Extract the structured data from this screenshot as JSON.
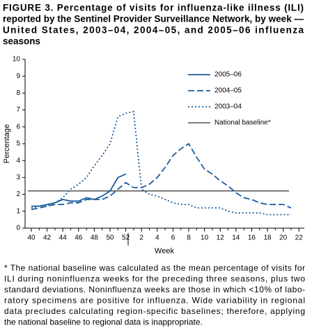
{
  "chart_data": {
    "type": "line",
    "title": [
      "FIGURE 3. Percentage of visits for influenza-like illness (ILI)",
      "reported by the Sentinel Provider Surveillance Network, by week —",
      "United States, 2003–04, 2004–05, and 2005–06 influenza",
      "seasons"
    ],
    "x_label": "Week",
    "y_label": "Percentage",
    "categories": [
      "40",
      null,
      "42",
      null,
      "44",
      null,
      "46",
      null,
      "48",
      null,
      "50",
      null,
      "52",
      null,
      "2",
      null,
      "4",
      null,
      "6",
      null,
      "8",
      null,
      "10",
      null,
      "12",
      null,
      "14",
      null,
      "16",
      null,
      "18",
      null,
      "20",
      null,
      "22"
    ],
    "series": [
      {
        "name": "2005–06",
        "color": "#1a5a9e",
        "dash": "solid",
        "values": [
          1.3,
          1.3,
          1.4,
          1.5,
          1.7,
          1.6,
          1.6,
          1.8,
          1.7,
          1.9,
          2.2,
          3.0,
          3.2,
          null,
          null,
          null,
          null,
          null,
          null,
          null,
          null,
          null,
          null,
          null,
          null,
          null,
          null,
          null,
          null,
          null,
          null,
          null,
          null,
          null,
          null
        ]
      },
      {
        "name": "2004–05",
        "color": "#1a5a9e",
        "dash": "dashed",
        "values": [
          1.1,
          1.2,
          1.3,
          1.4,
          1.4,
          1.5,
          1.5,
          1.7,
          1.7,
          1.7,
          1.9,
          2.3,
          2.7,
          2.4,
          2.4,
          2.6,
          3.0,
          3.6,
          4.3,
          4.7,
          5.0,
          4.2,
          3.5,
          3.2,
          2.8,
          2.5,
          2.1,
          1.8,
          1.7,
          1.5,
          1.4,
          1.4,
          1.4,
          1.2,
          null
        ]
      },
      {
        "name": "2003–04",
        "color": "#1a5a9e",
        "dash": "dotted",
        "values": [
          1.2,
          1.3,
          1.3,
          1.5,
          1.8,
          2.3,
          2.6,
          3.0,
          3.7,
          4.3,
          5.0,
          6.6,
          6.8,
          6.9,
          2.3,
          2.0,
          1.9,
          1.7,
          1.5,
          1.4,
          1.4,
          1.2,
          1.2,
          1.2,
          1.2,
          1.0,
          0.9,
          0.9,
          0.9,
          0.9,
          0.8,
          0.8,
          0.8,
          0.8,
          null
        ]
      }
    ],
    "baseline": {
      "name": "National baseline*",
      "value": 2.2,
      "color": "#000000"
    },
    "ylim": [
      0,
      10
    ],
    "yticks": [
      0,
      1,
      2,
      3,
      4,
      5,
      6,
      7,
      8,
      9,
      10
    ],
    "legend": "upper right",
    "footnote": [
      "* The national baseline was calculated as the mean percentage of visits for",
      "ILI during noninfluenza weeks for the preceding three seasons, plus two",
      "standard deviations. Noninfluenza weeks are those in which <10% of labo-",
      "ratory specimens are positive for influenza. Wide variability in regional",
      "data precludes calculating region-specific baselines; therefore, applying",
      "the national baseline to regional data is inappropriate."
    ]
  }
}
